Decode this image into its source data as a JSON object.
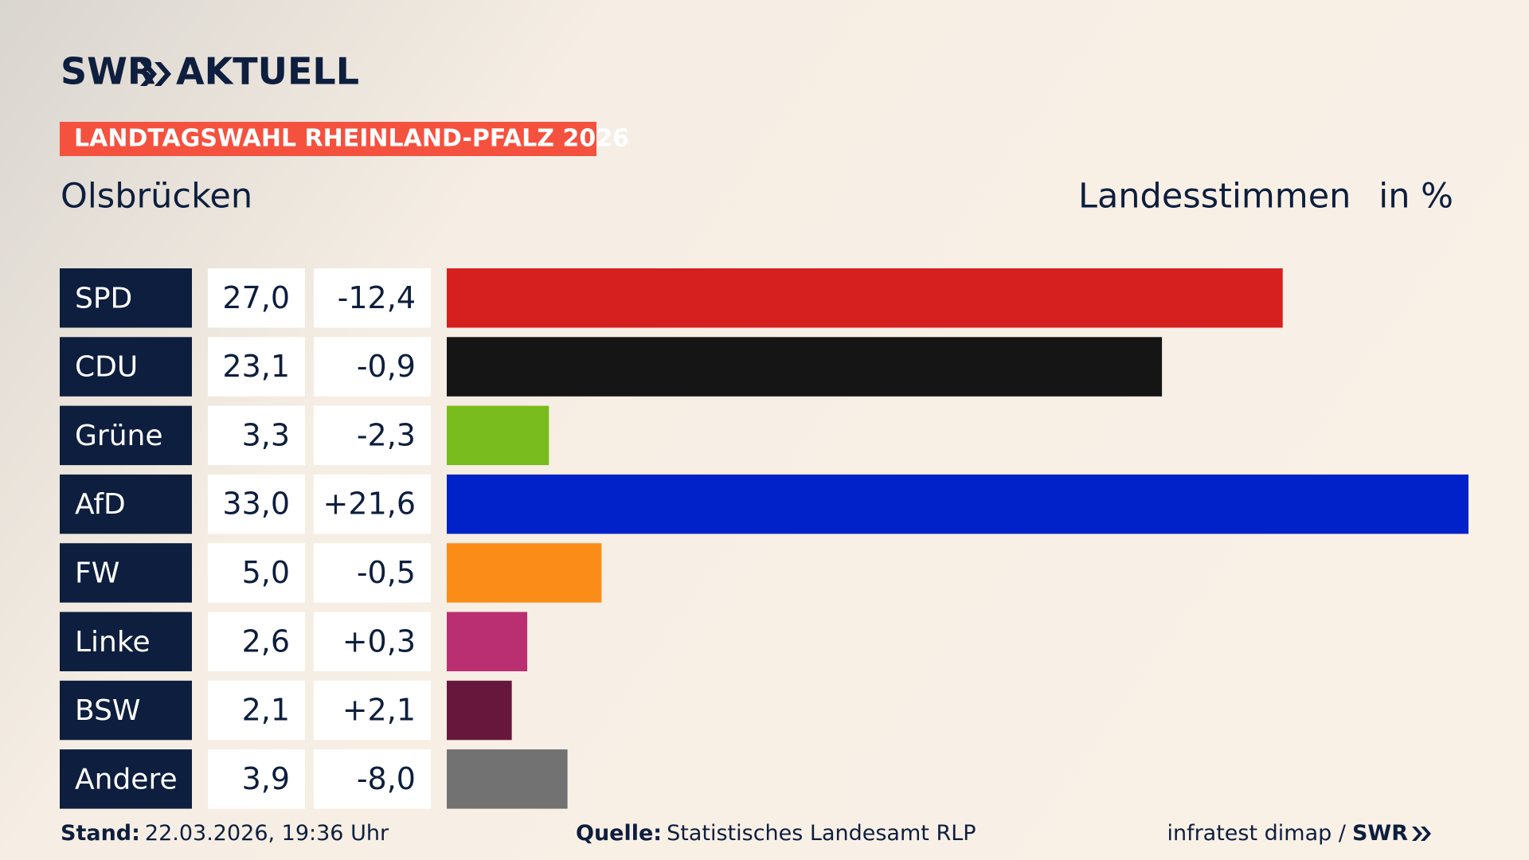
{
  "brand": {
    "logo_left": "SWR",
    "logo_right": "AKTUELL"
  },
  "badge": "LANDTAGSWAHL RHEINLAND-PFALZ 2026",
  "chart_data": {
    "type": "hbar",
    "title": "Olsbrücken",
    "subtitle": "Landesstimmen",
    "unit": "in %",
    "categories": [
      "SPD",
      "CDU",
      "Grüne",
      "AfD",
      "FW",
      "Linke",
      "BSW",
      "Andere"
    ],
    "values": [
      27.0,
      23.1,
      3.3,
      33.0,
      5.0,
      2.6,
      2.1,
      3.9
    ],
    "value_labels": [
      "27,0",
      "23,1",
      "3,3",
      "33,0",
      "5,0",
      "2,6",
      "2,1",
      "3,9"
    ],
    "changes": [
      "-12,4",
      "-0,9",
      "-2,3",
      "+21,6",
      "-0,5",
      "+0,3",
      "+2,1",
      "-8,0"
    ],
    "colors": [
      "#d61f1f",
      "#151515",
      "#79bc1d",
      "#0022c8",
      "#fb8c18",
      "#b92f72",
      "#68173c",
      "#727272"
    ],
    "xlim": [
      0,
      33
    ]
  },
  "footer": {
    "stand_label": "Stand:",
    "stand": "22.03.2026, 19:36 Uhr",
    "source_label": "Quelle:",
    "source": "Statistisches Landesamt RLP",
    "credit": "infratest dimap /",
    "credit_brand": "SWR"
  }
}
